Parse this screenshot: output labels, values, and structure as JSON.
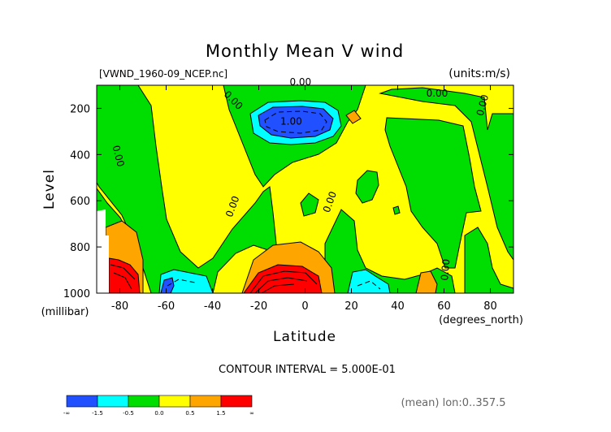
{
  "chart_data": {
    "type": "heatmap",
    "title": "Monthly Mean V wind",
    "file_label": "[VWND_1960-09_NCEP.nc]",
    "units_label": "(units:m/s)",
    "xlabel": "Latitude",
    "ylabel": "Level",
    "x_unit": "(degrees_north)",
    "y_unit": "(millibar)",
    "xlim": [
      -90,
      90
    ],
    "ylim": [
      1000,
      100
    ],
    "x_ticks": [
      -80,
      -60,
      -40,
      -20,
      0,
      20,
      40,
      60,
      80
    ],
    "y_ticks": [
      200,
      400,
      600,
      800,
      1000
    ],
    "contour_interval_text": "CONTOUR INTERVAL = 5.000E-01",
    "footer_text": "(mean) lon:0..357.5",
    "colorbar": {
      "tick_labels": [
        "-∞",
        "-1.5",
        "-0.5",
        "0.0",
        "0.5",
        "1.5",
        "∞"
      ],
      "colors": [
        "#2050ff",
        "#00ffff",
        "#00dd00",
        "#ffff00",
        "#ffa500",
        "#ff0000"
      ]
    },
    "contour_labels": [
      {
        "text": "0.00",
        "x": -2,
        "y": 100,
        "rotate": 0
      },
      {
        "text": "0.00",
        "x": 57,
        "y": 150,
        "rotate": 0
      },
      {
        "text": "0.00",
        "x": -32,
        "y": 175,
        "rotate": 45
      },
      {
        "text": "1.00",
        "x": -6,
        "y": 270,
        "rotate": 0
      },
      {
        "text": "0.00",
        "x": 78,
        "y": 190,
        "rotate": -75
      },
      {
        "text": "0.00",
        "x": -82,
        "y": 410,
        "rotate": 75
      },
      {
        "text": "0.00",
        "x": 12,
        "y": 610,
        "rotate": -70
      },
      {
        "text": "0.00",
        "x": -30,
        "y": 630,
        "rotate": -70
      },
      {
        "text": "0.00",
        "x": 62,
        "y": 900,
        "rotate": -85
      }
    ]
  }
}
